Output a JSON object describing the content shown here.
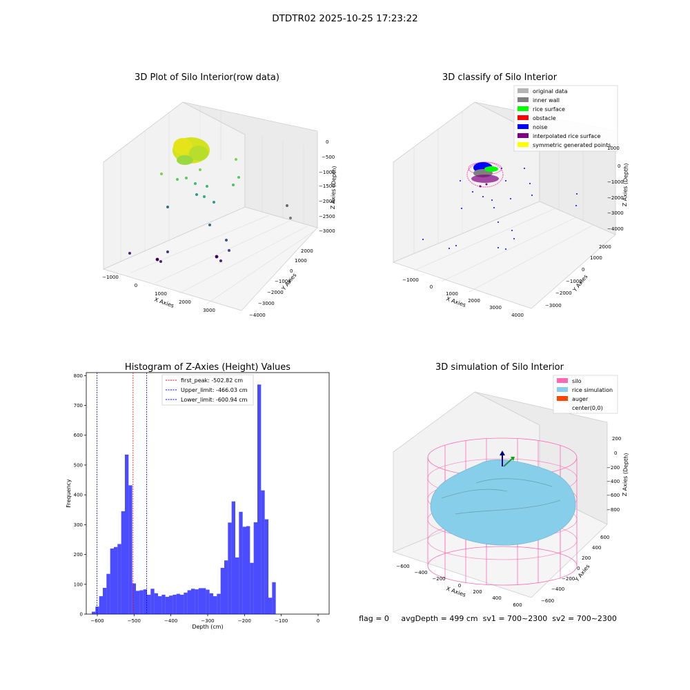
{
  "figure": {
    "title": "DTDTR02 2025-10-25 17:23:22",
    "status_line": "flag = 0     avgDepth = 499 cm  sv1 = 700~2300  sv2 = 700~2300"
  },
  "panels": {
    "raw": {
      "title": "3D Plot of Silo Interior(row data)",
      "xlabel": "X Axies",
      "ylabel": "Y Axies",
      "zlabel": "Z Axies (Depth)",
      "xticks": [
        "−1000",
        "0",
        "1000",
        "2000",
        "3000"
      ],
      "yticks": [
        "2000",
        "1000",
        "0",
        "−1000",
        "−2000",
        "−3000",
        "−4000"
      ],
      "zticks": [
        "0",
        "−500",
        "−1000",
        "−1500",
        "−2000",
        "−2500",
        "−3000"
      ]
    },
    "classify": {
      "title": "3D classify of Silo Interior",
      "xlabel": "X Axies",
      "ylabel": "Y Axies",
      "zlabel": "Z Axies (Depth)",
      "xticks": [
        "−1000",
        "0",
        "1000",
        "2000",
        "3000",
        "4000"
      ],
      "yticks": [
        "2000",
        "1000",
        "0",
        "−1000",
        "−2000",
        "−3000"
      ],
      "zticks": [
        "1000",
        "0",
        "−1000",
        "−2000",
        "−3000",
        "−4000"
      ],
      "legend": [
        {
          "label": "original data",
          "color": "#b4b4b4"
        },
        {
          "label": "inner wall",
          "color": "#808080"
        },
        {
          "label": "rice surface",
          "color": "#00ff00"
        },
        {
          "label": "obstacle",
          "color": "#ff0000"
        },
        {
          "label": "noise",
          "color": "#0000ff"
        },
        {
          "label": "interpolated rice surface",
          "color": "#800080"
        },
        {
          "label": "symmetric generated points",
          "color": "#ffff00"
        }
      ]
    },
    "simulation": {
      "title": "3D simulation of Silo Interior",
      "xlabel": "X Axies",
      "ylabel": "Y Axies",
      "zlabel": "Z Axies (Depth)",
      "xticks": [
        "−600",
        "−400",
        "−200",
        "0",
        "200",
        "400",
        "600"
      ],
      "yticks": [
        "600",
        "400",
        "200",
        "0",
        "−200",
        "−400",
        "−600"
      ],
      "zticks": [
        "200",
        "0",
        "−200",
        "−400",
        "−600",
        "−800"
      ],
      "legend": [
        {
          "label": "silo",
          "color": "#ff69b4"
        },
        {
          "label": "rice simulation",
          "color": "#87ceeb"
        },
        {
          "label": "auger",
          "color": "#ff4500"
        },
        {
          "label": "center(0,0)",
          "color": ""
        }
      ]
    }
  },
  "chart_data": {
    "type": "bar",
    "title": "Histogram of Z-Axies (Height) Values",
    "xlabel": "Depth (cm)",
    "ylabel": "Frequency",
    "xlim": [
      -630,
      30
    ],
    "ylim": [
      0,
      810
    ],
    "xticks": [
      -600,
      -500,
      -400,
      -300,
      -200,
      -100,
      0
    ],
    "yticks": [
      0,
      100,
      200,
      300,
      400,
      500,
      600,
      700,
      800
    ],
    "bin_width": 10,
    "bin_starts": [
      -615,
      -605,
      -595,
      -585,
      -575,
      -565,
      -555,
      -545,
      -535,
      -525,
      -515,
      -505,
      -495,
      -485,
      -475,
      -465,
      -455,
      -445,
      -435,
      -425,
      -415,
      -405,
      -395,
      -385,
      -375,
      -365,
      -355,
      -345,
      -335,
      -325,
      -315,
      -305,
      -295,
      -285,
      -275,
      -265,
      -255,
      -245,
      -235,
      -225,
      -215,
      -205,
      -195,
      -185,
      -175,
      -165,
      -155,
      -145,
      -135,
      -125,
      -115,
      -105,
      -95,
      -85,
      -75,
      -65,
      -55,
      -45,
      -35,
      -25,
      -15,
      -5
    ],
    "values": [
      8,
      25,
      60,
      88,
      135,
      220,
      225,
      235,
      345,
      535,
      432,
      103,
      78,
      80,
      83,
      65,
      85,
      70,
      60,
      65,
      58,
      62,
      65,
      68,
      65,
      72,
      80,
      85,
      83,
      87,
      87,
      82,
      70,
      60,
      68,
      155,
      180,
      307,
      378,
      190,
      343,
      293,
      295,
      172,
      308,
      770,
      415,
      318,
      55,
      107,
      0,
      0,
      0,
      0,
      0,
      0,
      0,
      0,
      0,
      0,
      0,
      0
    ],
    "series_color": "#0000ff",
    "lines": [
      {
        "label": "first_peak: -502.82 cm",
        "x": -502.82,
        "color": "#ff0000"
      },
      {
        "label": "Upper_limit: -466.03 cm",
        "x": -466.03,
        "color": "#0000ff"
      },
      {
        "label": "Lower_limit: -600.94 cm",
        "x": -600.94,
        "color": "#0000ff"
      }
    ]
  }
}
